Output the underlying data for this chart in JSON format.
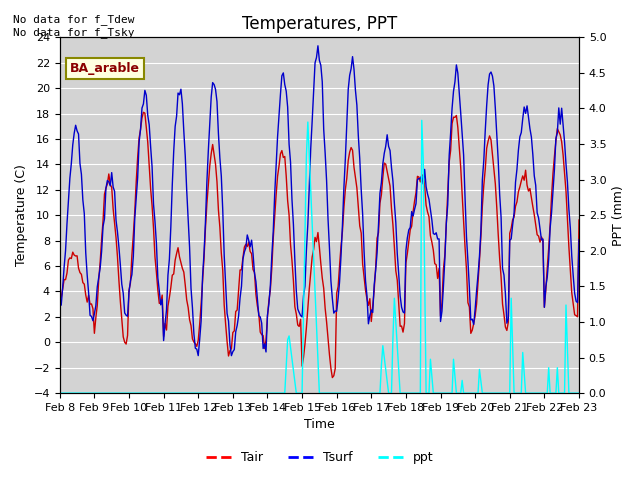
{
  "title": "Temperatures, PPT",
  "xlabel": "Time",
  "ylabel_left": "Temperature (C)",
  "ylabel_right": "PPT (mm)",
  "ylim_left": [
    -4,
    24
  ],
  "ylim_right": [
    0.0,
    5.0
  ],
  "yticks_left": [
    -4,
    -2,
    0,
    2,
    4,
    6,
    8,
    10,
    12,
    14,
    16,
    18,
    20,
    22,
    24
  ],
  "yticks_right": [
    0.0,
    0.5,
    1.0,
    1.5,
    2.0,
    2.5,
    3.0,
    3.5,
    4.0,
    4.5,
    5.0
  ],
  "xtick_labels": [
    "Feb 8",
    "Feb 9",
    "Feb 10",
    "Feb 11",
    "Feb 12",
    "Feb 13",
    "Feb 14",
    "Feb 15",
    "Feb 16",
    "Feb 17",
    "Feb 18",
    "Feb 19",
    "Feb 20",
    "Feb 21",
    "Feb 22",
    "Feb 23"
  ],
  "annotation_text": "No data for f_Tdew\nNo data for f_Tsky",
  "box_label": "BA_arable",
  "color_tair": "#cc0000",
  "color_tsurf": "#0000cc",
  "color_ppt": "#00ffff",
  "bg_color": "#d3d3d3"
}
